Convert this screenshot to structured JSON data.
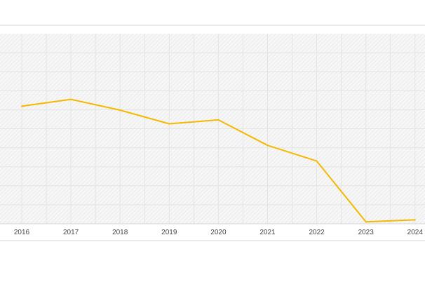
{
  "chart_data": {
    "type": "line",
    "title": "",
    "xlabel": "",
    "ylabel": "",
    "x": [
      "2016",
      "2017",
      "2018",
      "2019",
      "2020",
      "2021",
      "2022",
      "2023",
      "2024"
    ],
    "series": [
      {
        "values": [
          93,
          100,
          89,
          75,
          79,
          53,
          37,
          -25,
          -23
        ]
      }
    ],
    "ylim": [
      -27,
      167
    ],
    "grid": true,
    "legend": "none",
    "line_color": "#F5B800",
    "grid_color": "#E4E4E4",
    "plot_background": "#F7F7F7",
    "axis_line_color": "#D6D6D6"
  }
}
